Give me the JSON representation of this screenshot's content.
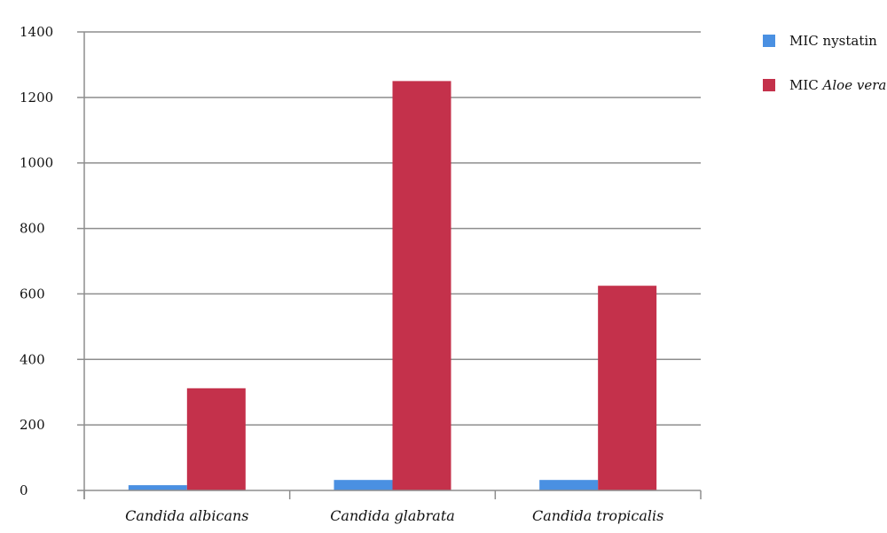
{
  "chart_data": {
    "type": "bar",
    "title": "",
    "xlabel": "",
    "ylabel": "",
    "ylim": [
      0,
      1400
    ],
    "yticks": [
      0,
      200,
      400,
      600,
      800,
      1000,
      1200,
      1400
    ],
    "grid": true,
    "legend_position": "top-right",
    "categories": [
      "Candida albicans",
      "Candida glabrata",
      "Candida tropicalis"
    ],
    "series": [
      {
        "name": "MIC nystatin",
        "name_prefix": "MIC",
        "name_species": "nystatin",
        "species_italic": false,
        "color": "#4a90e2",
        "values": [
          16,
          32,
          32
        ]
      },
      {
        "name": "MIC Aloe vera",
        "name_prefix": "MIC",
        "name_species": "Aloe vera",
        "species_italic": true,
        "color": "#c4314b",
        "values": [
          312,
          1250,
          625
        ]
      }
    ]
  }
}
